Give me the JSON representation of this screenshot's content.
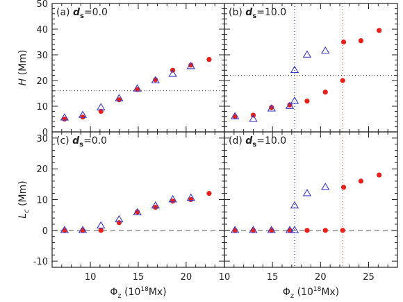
{
  "chart_data": [
    {
      "type": "scatter",
      "panel": "(a)",
      "label_var": "d",
      "label_sub": "s",
      "label_value": "=0.0",
      "xlim": [
        6,
        24
      ],
      "ylim": [
        0,
        50
      ],
      "x_ticks": [
        10,
        15,
        20
      ],
      "y_ticks": [
        0,
        10,
        20,
        30,
        40,
        50
      ],
      "ylabel_var": "H",
      "ylabel_unit": "(Mm)",
      "hlines": [
        {
          "y": 16,
          "style": "dotted",
          "color": "#333333"
        }
      ],
      "vlines": [],
      "series": [
        {
          "marker": "filled-circle",
          "color": "#e8201a",
          "x": [
            7.3,
            9.2,
            11.1,
            13.0,
            14.9,
            16.8,
            18.6,
            20.5,
            22.4
          ],
          "y": [
            5.0,
            5.8,
            8.0,
            12.5,
            16.5,
            20.3,
            24.0,
            26.0,
            28.2
          ]
        },
        {
          "marker": "open-triangle",
          "color": "#3a3ac8",
          "x": [
            7.3,
            9.2,
            11.1,
            13.0,
            14.9,
            16.8,
            18.6,
            20.5
          ],
          "y": [
            5.5,
            6.5,
            9.5,
            13.0,
            16.8,
            20.0,
            22.5,
            25.5
          ]
        }
      ]
    },
    {
      "type": "scatter",
      "panel": "(b)",
      "label_var": "d",
      "label_sub": "s",
      "label_value": "=10.0",
      "xlim": [
        10,
        28
      ],
      "ylim": [
        0,
        50
      ],
      "x_ticks": [
        10,
        15,
        20,
        25
      ],
      "y_ticks": [
        0,
        10,
        20,
        30,
        40,
        50
      ],
      "hlines": [
        {
          "y": 22,
          "style": "dotted",
          "color": "#333333"
        }
      ],
      "vlines": [
        {
          "x": 17.3,
          "style": "dotted",
          "color": "#4a4ae0"
        },
        {
          "x": 22.3,
          "style": "dotted",
          "color": "#e07040"
        }
      ],
      "series": [
        {
          "marker": "filled-circle",
          "color": "#e8201a",
          "x": [
            11.1,
            13.0,
            14.9,
            16.8,
            18.6,
            20.5,
            22.3,
            22.4,
            24.2,
            26.1
          ],
          "y": [
            6.0,
            6.5,
            9.5,
            10.5,
            12.0,
            15.5,
            20.0,
            35.0,
            35.5,
            39.5
          ]
        },
        {
          "marker": "open-triangle",
          "color": "#3a3ac8",
          "x": [
            11.1,
            13.0,
            14.9,
            16.8,
            17.3,
            17.3,
            18.6,
            20.5
          ],
          "y": [
            6.0,
            5.0,
            9.0,
            10.0,
            12.0,
            24.0,
            30.0,
            31.5
          ]
        }
      ]
    },
    {
      "type": "scatter",
      "panel": "(c)",
      "label_var": "d",
      "label_sub": "s",
      "label_value": "=0.0",
      "xlim": [
        6,
        24
      ],
      "ylim": [
        -12,
        32
      ],
      "x_ticks": [
        10,
        15,
        20
      ],
      "y_ticks": [
        -10,
        0,
        10,
        20,
        30
      ],
      "xlabel_var": "Φ",
      "xlabel_sub": "z",
      "xlabel_unit_open": "(10",
      "xlabel_unit_sup": "18",
      "xlabel_unit_close": "Mx)",
      "ylabel_var": "L",
      "ylabel_sub": "c",
      "ylabel_unit": "(Mm)",
      "hlines": [
        {
          "y": 0,
          "style": "dashed",
          "color": "#555555"
        }
      ],
      "vlines": [],
      "series": [
        {
          "marker": "filled-circle",
          "color": "#e8201a",
          "x": [
            7.3,
            9.2,
            11.1,
            13.0,
            14.9,
            16.8,
            18.6,
            20.5,
            22.4
          ],
          "y": [
            0.0,
            0.0,
            0.0,
            2.5,
            6.0,
            7.5,
            9.5,
            10.0,
            12.0
          ]
        },
        {
          "marker": "open-triangle",
          "color": "#3a3ac8",
          "x": [
            7.3,
            9.2,
            11.1,
            13.0,
            14.9,
            16.8,
            18.6,
            20.5
          ],
          "y": [
            0.0,
            0.0,
            1.5,
            3.5,
            5.8,
            8.0,
            10.0,
            10.5
          ]
        }
      ]
    },
    {
      "type": "scatter",
      "panel": "(d)",
      "label_var": "d",
      "label_sub": "s",
      "label_value": "=10.0",
      "xlim": [
        10,
        28
      ],
      "ylim": [
        -12,
        32
      ],
      "x_ticks": [
        10,
        15,
        20,
        25
      ],
      "y_ticks": [
        -10,
        0,
        10,
        20,
        30
      ],
      "xlabel_var": "Φ",
      "xlabel_sub": "z",
      "xlabel_unit_open": "(10",
      "xlabel_unit_sup": "18",
      "xlabel_unit_close": "Mx)",
      "hlines": [
        {
          "y": 0,
          "style": "dashed",
          "color": "#555555"
        }
      ],
      "vlines": [
        {
          "x": 17.3,
          "style": "dotted",
          "color": "#4a4ae0"
        },
        {
          "x": 22.3,
          "style": "dotted",
          "color": "#e07040"
        }
      ],
      "series": [
        {
          "marker": "filled-circle",
          "color": "#e8201a",
          "x": [
            11.1,
            13.0,
            14.9,
            16.8,
            18.6,
            20.5,
            22.3,
            22.4,
            24.2,
            26.1
          ],
          "y": [
            0.0,
            0.0,
            0.0,
            0.0,
            0.0,
            0.0,
            0.0,
            14.0,
            16.0,
            18.0
          ]
        },
        {
          "marker": "open-triangle",
          "color": "#3a3ac8",
          "x": [
            11.1,
            13.0,
            14.9,
            16.8,
            17.3,
            17.3,
            18.6,
            20.5
          ],
          "y": [
            0.0,
            0.0,
            0.0,
            0.0,
            0.0,
            8.0,
            12.0,
            14.0
          ]
        }
      ]
    }
  ]
}
